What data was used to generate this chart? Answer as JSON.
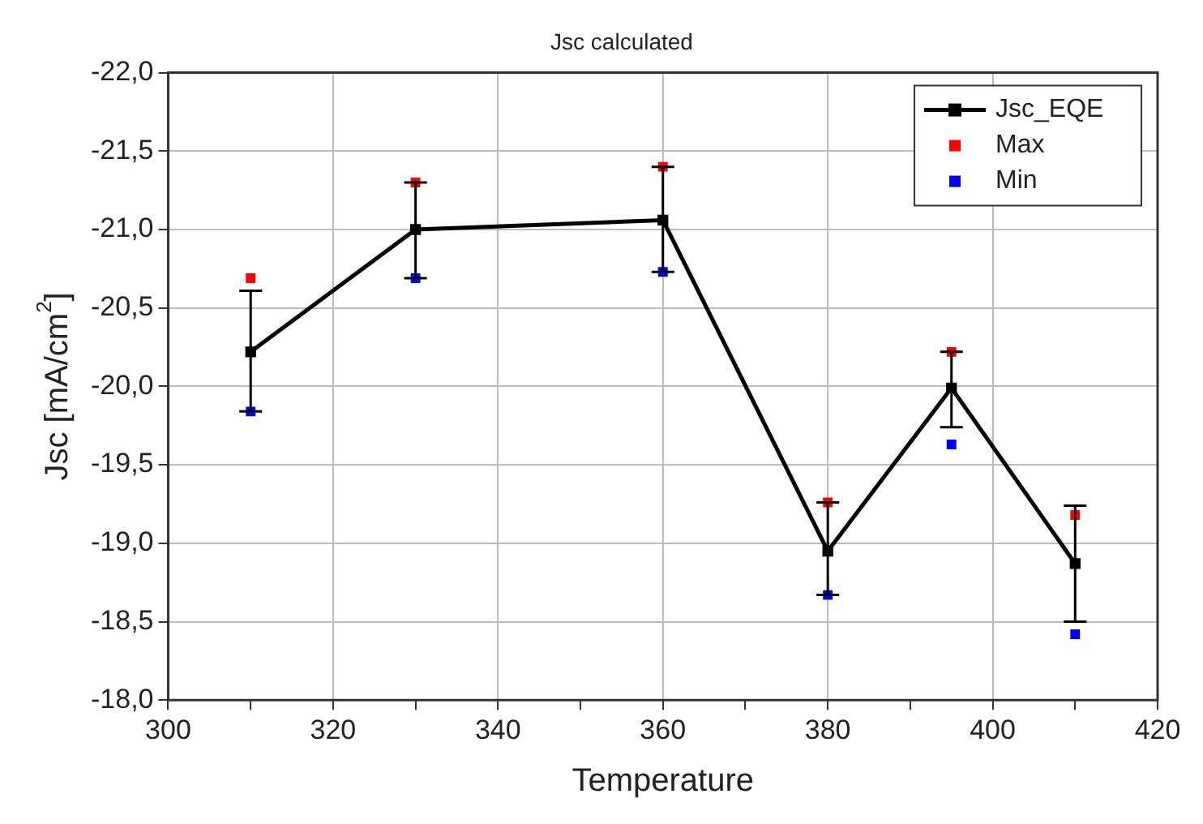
{
  "chart_data": {
    "type": "line",
    "title": "Jsc calculated",
    "xlabel": "Temperature",
    "ylabel": "Jsc [mA/cm$^{2}$]",
    "x": [
      310,
      330,
      360,
      380,
      395,
      410
    ],
    "series": [
      {
        "name": "Jsc_EQE",
        "color": "#000000",
        "marker": "square",
        "values": [
          -20.22,
          -21.0,
          -21.06,
          -18.95,
          -19.99,
          -18.87
        ],
        "errors": [
          [
            -20.61,
            -19.84
          ],
          [
            -21.3,
            -20.69
          ],
          [
            -21.4,
            -20.73
          ],
          [
            -19.26,
            -18.67
          ],
          [
            -20.22,
            -19.74
          ],
          [
            -19.24,
            -18.5
          ]
        ]
      },
      {
        "name": "Max",
        "type": "scatter",
        "color": "#ff0000",
        "marker": "square",
        "values": [
          -20.69,
          -21.3,
          -21.4,
          -19.26,
          -20.22,
          -19.18
        ]
      },
      {
        "name": "Min",
        "type": "scatter",
        "color": "#0000ff",
        "marker": "square",
        "values": [
          -19.84,
          -20.69,
          -20.73,
          -18.67,
          -19.63,
          -18.42
        ]
      }
    ],
    "xlim": [
      300,
      420
    ],
    "xticks": [
      300,
      {
        "value": 310,
        "label": null
      },
      320,
      {
        "value": 330,
        "label": null
      },
      340,
      {
        "value": 350,
        "label": null
      },
      360,
      {
        "value": 370,
        "label": null
      },
      380,
      {
        "value": 390,
        "label": null
      },
      400,
      {
        "value": 410,
        "label": null
      },
      420
    ],
    "ylim": [
      -18,
      -22
    ],
    "yticks": [
      {
        "value": -18,
        "label": "-18,0"
      },
      {
        "value": -18.5,
        "label": "-18,5"
      },
      {
        "value": -19,
        "label": "-19,0"
      },
      {
        "value": -19.5,
        "label": "-19,5"
      },
      {
        "value": -20,
        "label": "-20,0"
      },
      {
        "value": -20.5,
        "label": "-20,5"
      },
      {
        "value": -21,
        "label": "-21,0"
      },
      {
        "value": -21.5,
        "label": "-21,5"
      },
      {
        "value": -22,
        "label": "-22,0"
      }
    ],
    "grid": true,
    "legend": "top right",
    "line_style": "solid"
  }
}
